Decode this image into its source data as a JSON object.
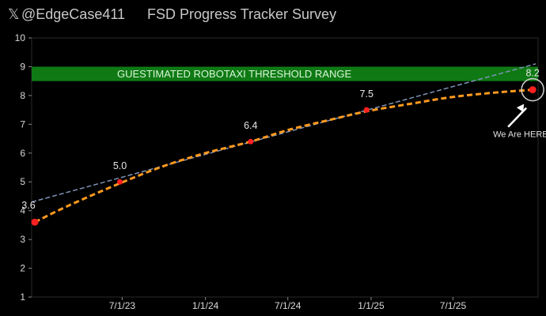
{
  "header": {
    "x_logo": "𝕏",
    "handle": "@EdgeCase411",
    "title": "FSD Progress Tracker Survey"
  },
  "chart_data": {
    "type": "line",
    "title": "FSD Progress Tracker Survey",
    "xlabel": "",
    "ylabel": "",
    "ylim": [
      1,
      10
    ],
    "xlim": [
      "2022-12-13",
      "2026-01-05"
    ],
    "grid": false,
    "y_ticks": [
      "1",
      "2",
      "3",
      "4",
      "5",
      "6",
      "7",
      "8",
      "9",
      "10"
    ],
    "x_ticks": [
      {
        "date": "2023-07-01",
        "label": "7/1/23"
      },
      {
        "date": "2024-01-01",
        "label": "1/1/24"
      },
      {
        "date": "2024-07-01",
        "label": "7/1/24"
      },
      {
        "date": "2025-01-01",
        "label": "1/1/25"
      },
      {
        "date": "2025-07-01",
        "label": "7/1/25"
      }
    ],
    "series": [
      {
        "points": [
          {
            "x": "2022-12-20",
            "y": 3.6,
            "label": "3.6"
          },
          {
            "x": "2023-06-26",
            "y": 5.0,
            "label": "5.0"
          },
          {
            "x": "2024-04-10",
            "y": 6.4,
            "label": "6.4"
          },
          {
            "x": "2024-12-22",
            "y": 7.5,
            "label": "7.5"
          },
          {
            "x": "2025-12-24",
            "y": 8.2,
            "label": "8.2"
          }
        ],
        "color": "#ff2020"
      }
    ],
    "polynomial_trend": {
      "color": "#ff9a1f",
      "points": [
        {
          "x": "2022-12-20",
          "y": 3.6
        },
        {
          "x": "2023-03-01",
          "y": 4.15
        },
        {
          "x": "2023-06-26",
          "y": 4.95
        },
        {
          "x": "2023-10-01",
          "y": 5.55
        },
        {
          "x": "2024-01-01",
          "y": 6.0
        },
        {
          "x": "2024-04-10",
          "y": 6.4
        },
        {
          "x": "2024-07-01",
          "y": 6.8
        },
        {
          "x": "2024-10-01",
          "y": 7.15
        },
        {
          "x": "2024-12-22",
          "y": 7.45
        },
        {
          "x": "2025-04-01",
          "y": 7.72
        },
        {
          "x": "2025-07-01",
          "y": 7.95
        },
        {
          "x": "2025-10-01",
          "y": 8.1
        },
        {
          "x": "2025-12-24",
          "y": 8.2
        }
      ]
    },
    "linear_trend": {
      "color": "#7f93b8",
      "points": [
        {
          "x": "2022-12-13",
          "y": 4.3
        },
        {
          "x": "2025-12-31",
          "y": 9.1
        }
      ]
    },
    "threshold_band": {
      "label": "GUESTIMATED ROBOTAXI THRESHOLD RANGE",
      "y_min": 8.5,
      "y_max": 9.0,
      "color": "#0f7a14"
    },
    "annotation": {
      "text": "We Are HERE",
      "target": {
        "x": "2025-12-24",
        "y": 8.2
      }
    }
  }
}
